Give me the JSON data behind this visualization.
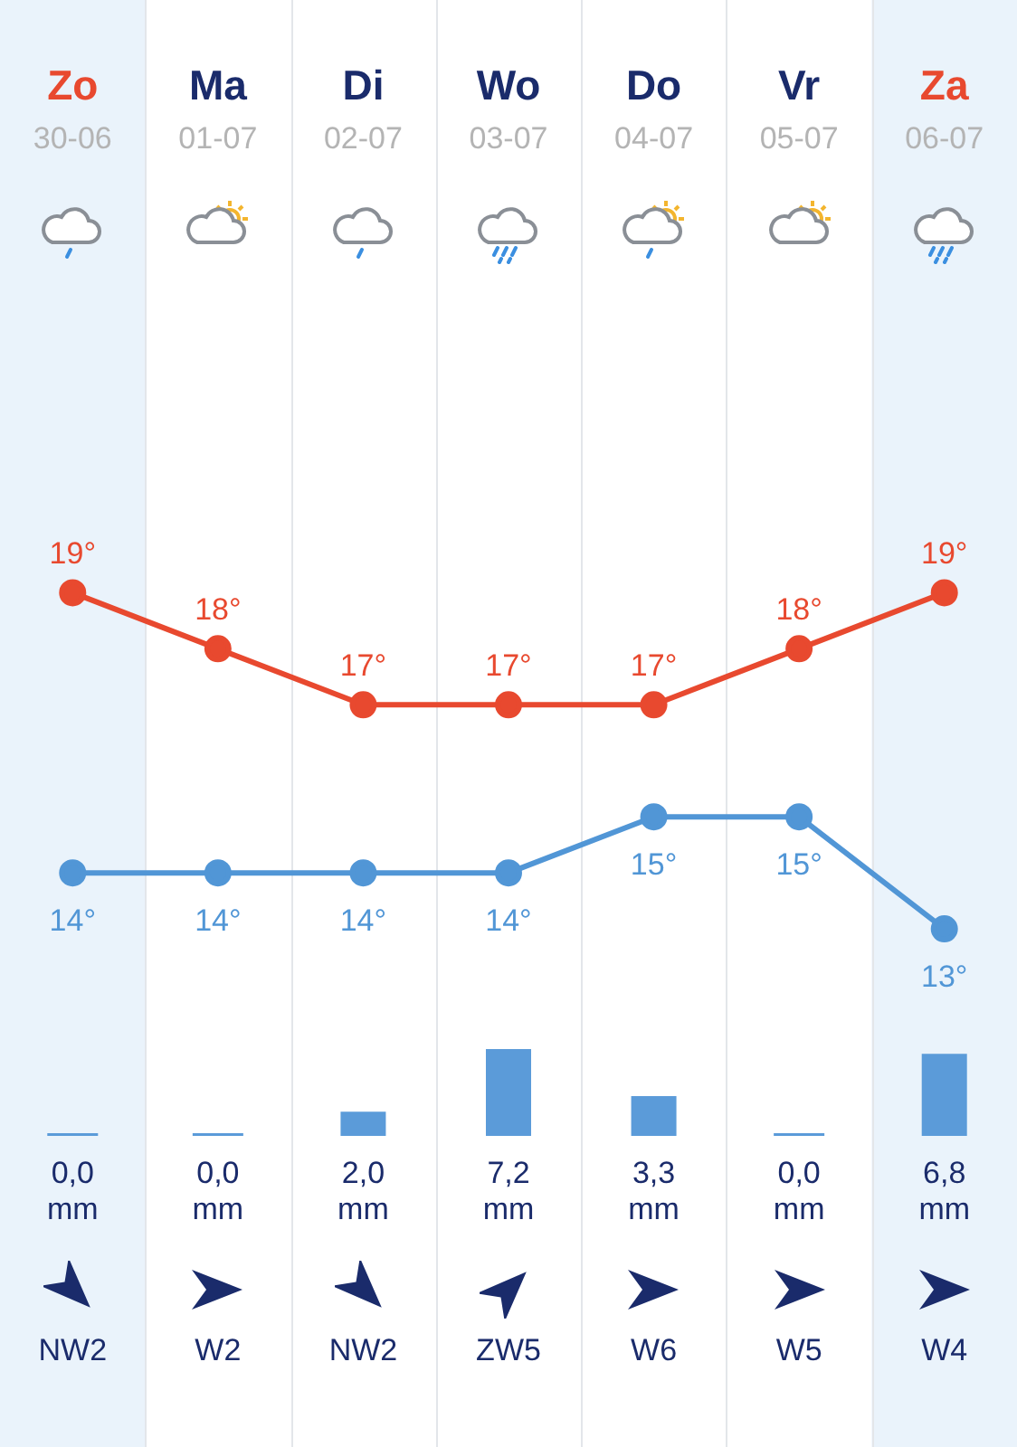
{
  "chart_data": [
    {
      "type": "line",
      "categories": [
        "Zo\n30-06",
        "Ma\n01-07",
        "Di\n02-07",
        "Wo\n03-07",
        "Do\n04-07",
        "Vr\n05-07",
        "Za\n06-07"
      ],
      "series": [
        {
          "color": "#e8492f",
          "values": [
            19,
            18,
            17,
            17,
            17,
            18,
            19
          ],
          "value_labels": [
            "19°",
            "18°",
            "17°",
            "17°",
            "17°",
            "18°",
            "19°"
          ]
        },
        {
          "color": "#5196d6",
          "values": [
            14,
            14,
            14,
            14,
            15,
            15,
            13
          ],
          "value_labels": [
            "14°",
            "14°",
            "14°",
            "14°",
            "15°",
            "15°",
            "13°"
          ]
        }
      ],
      "marker": "circle",
      "line_style": "solid",
      "grid": "x",
      "legend": false,
      "bands": [
        {
          "axis": "x",
          "from": "Zo\n30-06",
          "to": "Zo\n30-06",
          "color": "#eaf3fb"
        },
        {
          "axis": "x",
          "from": "Za\n06-07",
          "to": "Za\n06-07",
          "color": "#eaf3fb"
        }
      ]
    },
    {
      "type": "bar",
      "categories": [
        "Zo\n30-06",
        "Ma\n01-07",
        "Di\n02-07",
        "Wo\n03-07",
        "Do\n04-07",
        "Vr\n05-07",
        "Za\n06-07"
      ],
      "color": "#5b9bd9",
      "values": [
        0.0,
        0.0,
        2.0,
        7.2,
        3.3,
        0.0,
        6.8
      ],
      "value_labels": [
        "0,0\nmm",
        "0,0\nmm",
        "2,0\nmm",
        "7,2\nmm",
        "3,3\nmm",
        "0,0\nmm",
        "6,8\nmm"
      ],
      "tick_labels": false,
      "grid": "x",
      "legend": false,
      "bands": [
        {
          "axis": "x",
          "from": "Zo\n30-06",
          "to": "Zo\n30-06",
          "color": "#eaf3fb"
        },
        {
          "axis": "x",
          "from": "Za\n06-07",
          "to": "Za\n06-07",
          "color": "#eaf3fb"
        }
      ],
      "annotations": [
        "NW2",
        "W2",
        "NW2",
        "ZW5",
        "W6",
        "W5",
        "W4"
      ]
    }
  ]
}
